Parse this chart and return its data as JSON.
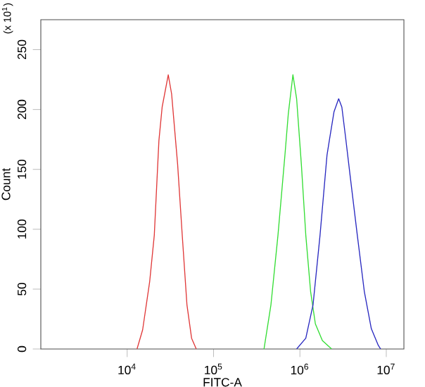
{
  "chart_data": {
    "type": "line",
    "xlabel": "FITC-A",
    "ylabel": "Count",
    "annotations": [
      "(x 10$^{1}$)"
    ],
    "log": "x",
    "xlim": [
      1000,
      16000000
    ],
    "ylim": [
      0,
      275
    ],
    "xticks": [
      {
        "value": 10000,
        "label": "10$^{4}$"
      },
      {
        "value": 100000,
        "label": "10$^{5}$"
      },
      {
        "value": 1000000,
        "label": "10$^{6}$"
      },
      {
        "value": 10000000,
        "label": "10$^{7}$"
      }
    ],
    "yticks": [
      0,
      50,
      100,
      150,
      200,
      250
    ],
    "series": [
      {
        "color": "#e03838",
        "x": [
          13000,
          15100,
          18200,
          20600,
          23300,
          25400,
          29900,
          32700,
          38400,
          43400,
          49200,
          55700,
          63100
        ],
        "values": [
          0,
          16,
          56,
          95,
          174,
          202,
          229,
          213,
          154,
          95,
          37,
          9,
          0
        ]
      },
      {
        "color": "#33dd33",
        "x": [
          384000,
          462000,
          557000,
          671000,
          733000,
          830000,
          916000,
          1040000,
          1170000,
          1330000,
          1510000,
          1820000,
          2330000
        ],
        "values": [
          0,
          37,
          95,
          162,
          196,
          229,
          209,
          154,
          95,
          48,
          21,
          7,
          0
        ]
      },
      {
        "color": "#2828c0",
        "x": [
          916000,
          1170000,
          1420000,
          1710000,
          2060000,
          2190000,
          2480000,
          2810000,
          3060000,
          3390000,
          3840000,
          4620000,
          5570000,
          6710000,
          8090000,
          8610000
        ],
        "values": [
          0,
          9,
          37,
          95,
          162,
          174,
          198,
          209,
          202,
          176,
          143,
          95,
          48,
          17,
          3,
          0
        ]
      }
    ]
  }
}
